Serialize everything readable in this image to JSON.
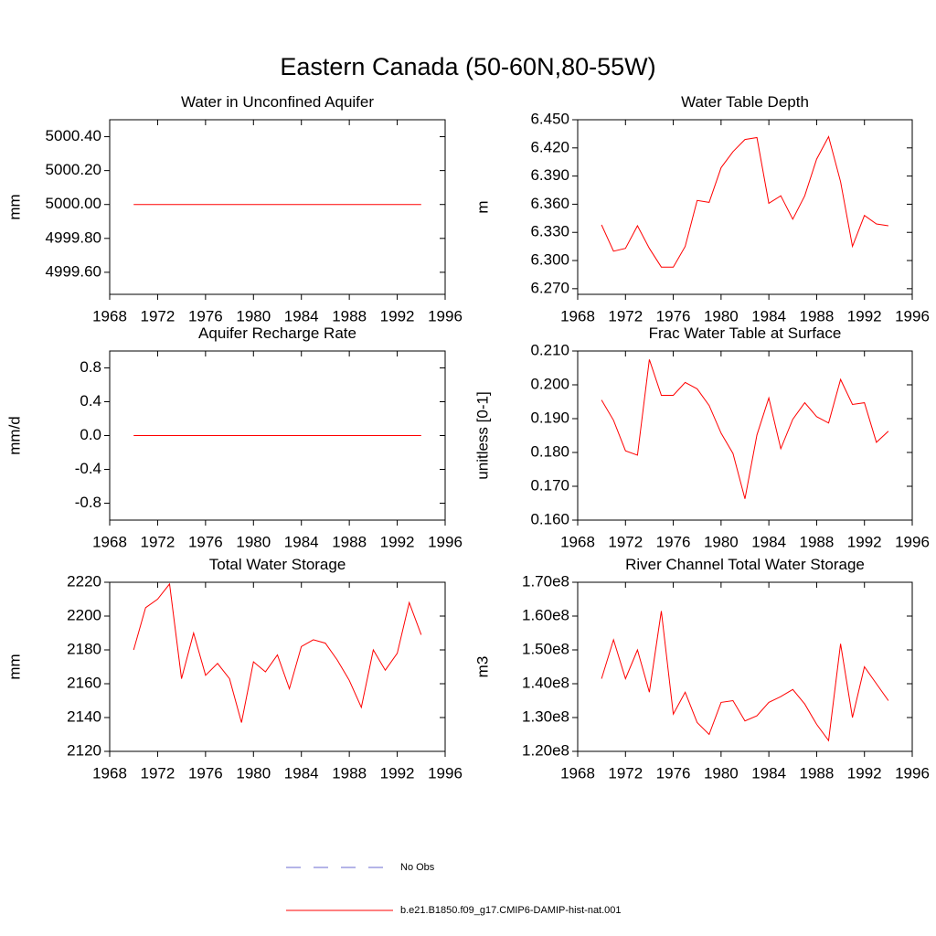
{
  "title": "Eastern Canada (50-60N,80-55W)",
  "legend": [
    {
      "name": "No Obs",
      "color": "#6a6ad0",
      "dash": true
    },
    {
      "name": "b.e21.B1850.f09_g17.CMIP6-DAMIP-hist-nat.001",
      "color": "#ff0000",
      "dash": false
    }
  ],
  "chart_data": [
    {
      "type": "line",
      "title": "Water in Unconfined Aquifer",
      "y_label": "mm",
      "color": "#ff0000",
      "x": [
        1970,
        1971,
        1972,
        1973,
        1974,
        1975,
        1976,
        1977,
        1978,
        1979,
        1980,
        1981,
        1982,
        1983,
        1984,
        1985,
        1986,
        1987,
        1988,
        1989,
        1990,
        1991,
        1992,
        1993,
        1994
      ],
      "values": [
        5000,
        5000,
        5000,
        5000,
        5000,
        5000,
        5000,
        5000,
        5000,
        5000,
        5000,
        5000,
        5000,
        5000,
        5000,
        5000,
        5000,
        5000,
        5000,
        5000,
        5000,
        5000,
        5000,
        5000,
        5000
      ],
      "xlim": [
        1968,
        1996
      ],
      "xticks": [
        1968,
        1972,
        1976,
        1980,
        1984,
        1988,
        1992,
        1996
      ],
      "ylim": [
        4999.47,
        5000.5
      ],
      "yticks": [
        {
          "value": 4999.6,
          "label": "4999.60"
        },
        {
          "value": 4999.8,
          "label": "4999.80"
        },
        {
          "value": 5000,
          "label": "5000.00"
        },
        {
          "value": 5000.2,
          "label": "5000.20"
        },
        {
          "value": 5000.4,
          "label": "5000.40"
        }
      ]
    },
    {
      "type": "line",
      "title": "Water Table Depth",
      "y_label": "m",
      "color": "#ff0000",
      "x": [
        1970,
        1971,
        1972,
        1973,
        1974,
        1975,
        1976,
        1977,
        1978,
        1979,
        1980,
        1981,
        1982,
        1983,
        1984,
        1985,
        1986,
        1987,
        1988,
        1989,
        1990,
        1991,
        1992,
        1993,
        1994
      ],
      "values": [
        6.338,
        6.31,
        6.313,
        6.337,
        6.313,
        6.293,
        6.293,
        6.315,
        6.364,
        6.362,
        6.399,
        6.416,
        6.429,
        6.431,
        6.361,
        6.369,
        6.344,
        6.369,
        6.408,
        6.432,
        6.384,
        6.315,
        6.348,
        6.339,
        6.337
      ],
      "xlim": [
        1968,
        1996
      ],
      "xticks": [
        1968,
        1972,
        1976,
        1980,
        1984,
        1988,
        1992,
        1996
      ],
      "ylim": [
        6.264,
        6.45
      ],
      "yticks": [
        {
          "value": 6.27,
          "label": "6.270"
        },
        {
          "value": 6.3,
          "label": "6.300"
        },
        {
          "value": 6.33,
          "label": "6.330"
        },
        {
          "value": 6.36,
          "label": "6.360"
        },
        {
          "value": 6.39,
          "label": "6.390"
        },
        {
          "value": 6.42,
          "label": "6.420"
        },
        {
          "value": 6.45,
          "label": "6.450"
        }
      ]
    },
    {
      "type": "line",
      "title": "Aquifer Recharge Rate",
      "y_label": "mm/d",
      "color": "#ff0000",
      "x": [
        1970,
        1971,
        1972,
        1973,
        1974,
        1975,
        1976,
        1977,
        1978,
        1979,
        1980,
        1981,
        1982,
        1983,
        1984,
        1985,
        1986,
        1987,
        1988,
        1989,
        1990,
        1991,
        1992,
        1993,
        1994
      ],
      "values": [
        0,
        0,
        0,
        0,
        0,
        0,
        0,
        0,
        0,
        0,
        0,
        0,
        0,
        0,
        0,
        0,
        0,
        0,
        0,
        0,
        0,
        0,
        0,
        0,
        0
      ],
      "xlim": [
        1968,
        1996
      ],
      "xticks": [
        1968,
        1972,
        1976,
        1980,
        1984,
        1988,
        1992,
        1996
      ],
      "ylim": [
        -1,
        1
      ],
      "yticks": [
        -0.8,
        -0.4,
        {
          "value": 0,
          "label": "0.0"
        },
        0.4,
        0.8
      ]
    },
    {
      "type": "line",
      "title": "Frac Water Table at Surface",
      "y_label": "unitless [0-1]",
      "color": "#ff0000",
      "x": [
        1970,
        1971,
        1972,
        1973,
        1974,
        1975,
        1976,
        1977,
        1978,
        1979,
        1980,
        1981,
        1982,
        1983,
        1984,
        1985,
        1986,
        1987,
        1988,
        1989,
        1990,
        1991,
        1992,
        1993,
        1994
      ],
      "values": [
        0.1955,
        0.1895,
        0.1805,
        0.1792,
        0.2075,
        0.1969,
        0.1969,
        0.2007,
        0.1988,
        0.1939,
        0.1857,
        0.1797,
        0.1663,
        0.1852,
        0.1961,
        0.1811,
        0.1898,
        0.1947,
        0.1906,
        0.1887,
        0.2016,
        0.1942,
        0.1947,
        0.183,
        0.1863
      ],
      "xlim": [
        1968,
        1996
      ],
      "xticks": [
        1968,
        1972,
        1976,
        1980,
        1984,
        1988,
        1992,
        1996
      ],
      "ylim": [
        0.16,
        0.21
      ],
      "yticks": [
        {
          "value": 0.16,
          "label": "0.160"
        },
        {
          "value": 0.17,
          "label": "0.170"
        },
        {
          "value": 0.18,
          "label": "0.180"
        },
        {
          "value": 0.19,
          "label": "0.190"
        },
        {
          "value": 0.2,
          "label": "0.200"
        },
        {
          "value": 0.21,
          "label": "0.210"
        }
      ]
    },
    {
      "type": "line",
      "title": "Total Water Storage",
      "y_label": "mm",
      "color": "#ff0000",
      "x": [
        1970,
        1971,
        1972,
        1973,
        1974,
        1975,
        1976,
        1977,
        1978,
        1979,
        1980,
        1981,
        1982,
        1983,
        1984,
        1985,
        1986,
        1987,
        1988,
        1989,
        1990,
        1991,
        1992,
        1993,
        1994
      ],
      "values": [
        2180,
        2205,
        2210,
        2219,
        2163,
        2190,
        2165,
        2172,
        2163,
        2137,
        2173,
        2167,
        2177,
        2157,
        2182,
        2186,
        2184,
        2174,
        2162,
        2146,
        2180,
        2168,
        2178,
        2208,
        2189
      ],
      "xlim": [
        1968,
        1996
      ],
      "xticks": [
        1968,
        1972,
        1976,
        1980,
        1984,
        1988,
        1992,
        1996
      ],
      "ylim": [
        2120,
        2220
      ],
      "yticks": [
        2120,
        2140,
        2160,
        2180,
        2200,
        2220
      ]
    },
    {
      "type": "line",
      "title": "River Channel Total Water Storage",
      "y_label": "m3",
      "color": "#ff0000",
      "x": [
        1970,
        1971,
        1972,
        1973,
        1974,
        1975,
        1976,
        1977,
        1978,
        1979,
        1980,
        1981,
        1982,
        1983,
        1984,
        1985,
        1986,
        1987,
        1988,
        1989,
        1990,
        1991,
        1992,
        1993,
        1994
      ],
      "values": [
        141500000,
        153000000,
        141500000,
        150000000,
        137500000,
        161500000,
        131000000,
        137500000,
        128500000,
        125000000,
        134500000,
        135000000,
        129000000,
        130500000,
        134500000,
        136200000,
        138300000,
        134000000,
        128000000,
        123200000,
        151800000,
        130000000,
        145000000,
        140000000,
        135000000
      ],
      "xlim": [
        1968,
        1996
      ],
      "xticks": [
        1968,
        1972,
        1976,
        1980,
        1984,
        1988,
        1992,
        1996
      ],
      "ylim": [
        120000000,
        170000000
      ],
      "yticks": [
        {
          "value": 120000000,
          "label": "1.20e8"
        },
        {
          "value": 130000000,
          "label": "1.30e8"
        },
        {
          "value": 140000000,
          "label": "1.40e8"
        },
        {
          "value": 150000000,
          "label": "1.50e8"
        },
        {
          "value": 160000000,
          "label": "1.60e8"
        },
        {
          "value": 170000000,
          "label": "1.70e8"
        }
      ]
    }
  ]
}
